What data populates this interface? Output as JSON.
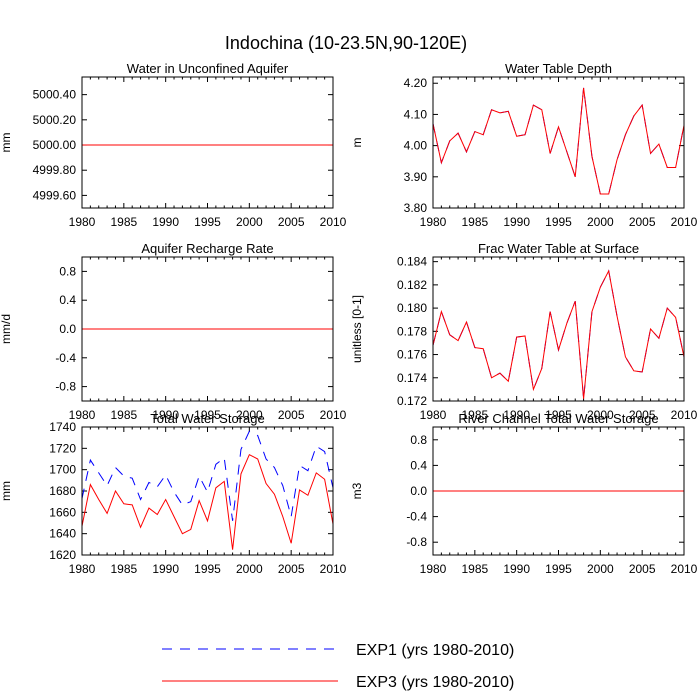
{
  "figure_title": "Indochina (10-23.5N,90-120E)",
  "legend": [
    {
      "label": "EXP1 (yrs 1980-2010)",
      "color": "#0000ff",
      "dash": "dashed"
    },
    {
      "label": "EXP3 (yrs 1980-2010)",
      "color": "#ff0000",
      "dash": "solid"
    }
  ],
  "chart_data": [
    {
      "type": "line",
      "title": "Water in Unconfined Aquifer",
      "ylabel": "mm",
      "xlabel": "",
      "xlim": [
        1980,
        2010
      ],
      "ylim": [
        4999.5,
        5000.54
      ],
      "xticks": [
        1980,
        1985,
        1990,
        1995,
        2000,
        2005,
        2010
      ],
      "xtick_labels": [
        "1980",
        "1985",
        "1990",
        "1995",
        "2000",
        "2005",
        "2010"
      ],
      "yticks": [
        4999.6,
        4999.8,
        5000.0,
        5000.2,
        5000.4
      ],
      "ytick_labels": [
        "4999.60",
        "4999.80",
        "5000.00",
        "5000.20",
        "5000.40"
      ],
      "x": [
        1980,
        1981,
        1982,
        1983,
        1984,
        1985,
        1986,
        1987,
        1988,
        1989,
        1990,
        1991,
        1992,
        1993,
        1994,
        1995,
        1996,
        1997,
        1998,
        1999,
        2000,
        2001,
        2002,
        2003,
        2004,
        2005,
        2006,
        2007,
        2008,
        2009,
        2010
      ],
      "series": [
        {
          "name": "EXP1 (yrs 1980-2010)",
          "values": [
            5000,
            5000,
            5000,
            5000,
            5000,
            5000,
            5000,
            5000,
            5000,
            5000,
            5000,
            5000,
            5000,
            5000,
            5000,
            5000,
            5000,
            5000,
            5000,
            5000,
            5000,
            5000,
            5000,
            5000,
            5000,
            5000,
            5000,
            5000,
            5000,
            5000,
            5000
          ]
        },
        {
          "name": "EXP3 (yrs 1980-2010)",
          "values": [
            5000,
            5000,
            5000,
            5000,
            5000,
            5000,
            5000,
            5000,
            5000,
            5000,
            5000,
            5000,
            5000,
            5000,
            5000,
            5000,
            5000,
            5000,
            5000,
            5000,
            5000,
            5000,
            5000,
            5000,
            5000,
            5000,
            5000,
            5000,
            5000,
            5000,
            5000
          ]
        }
      ]
    },
    {
      "type": "line",
      "title": "Water Table Depth",
      "ylabel": "m",
      "xlabel": "",
      "xlim": [
        1980,
        2010
      ],
      "ylim": [
        3.8,
        4.22
      ],
      "xticks": [
        1980,
        1985,
        1990,
        1995,
        2000,
        2005,
        2010
      ],
      "xtick_labels": [
        "1980",
        "1985",
        "1990",
        "1995",
        "2000",
        "2005",
        "2010"
      ],
      "yticks": [
        3.8,
        3.9,
        4.0,
        4.1,
        4.2
      ],
      "ytick_labels": [
        "3.80",
        "3.90",
        "4.00",
        "4.10",
        "4.20"
      ],
      "x": [
        1980,
        1981,
        1982,
        1983,
        1984,
        1985,
        1986,
        1987,
        1988,
        1989,
        1990,
        1991,
        1992,
        1993,
        1994,
        1995,
        1996,
        1997,
        1998,
        1999,
        2000,
        2001,
        2002,
        2003,
        2004,
        2005,
        2006,
        2007,
        2008,
        2009,
        2010
      ],
      "series": [
        {
          "name": "EXP1 (yrs 1980-2010)",
          "values": [
            4.07,
            3.945,
            4.015,
            4.04,
            3.98,
            4.045,
            4.035,
            4.115,
            4.105,
            4.11,
            4.03,
            4.035,
            4.13,
            4.115,
            3.975,
            4.06,
            3.98,
            3.9,
            4.185,
            3.965,
            3.845,
            3.845,
            3.955,
            4.035,
            4.095,
            4.13,
            3.975,
            4.005,
            3.93,
            3.93,
            4.065
          ]
        },
        {
          "name": "EXP3 (yrs 1980-2010)",
          "values": [
            4.07,
            3.945,
            4.015,
            4.04,
            3.98,
            4.045,
            4.035,
            4.115,
            4.105,
            4.11,
            4.03,
            4.035,
            4.13,
            4.115,
            3.975,
            4.06,
            3.98,
            3.9,
            4.185,
            3.965,
            3.845,
            3.845,
            3.955,
            4.035,
            4.095,
            4.13,
            3.975,
            4.005,
            3.93,
            3.93,
            4.065
          ]
        }
      ]
    },
    {
      "type": "line",
      "title": "Aquifer Recharge Rate",
      "ylabel": "mm/d",
      "xlabel": "",
      "xlim": [
        1980,
        2010
      ],
      "ylim": [
        -1.0,
        1.0
      ],
      "xticks": [
        1980,
        1985,
        1990,
        1995,
        2000,
        2005,
        2010
      ],
      "xtick_labels": [
        "1980",
        "1985",
        "1990",
        "1995",
        "2000",
        "2005",
        "2010"
      ],
      "yticks": [
        -0.8,
        -0.4,
        0.0,
        0.4,
        0.8
      ],
      "ytick_labels": [
        "-0.8",
        "-0.4",
        "0.0",
        "0.4",
        "0.8"
      ],
      "x": [
        1980,
        1981,
        1982,
        1983,
        1984,
        1985,
        1986,
        1987,
        1988,
        1989,
        1990,
        1991,
        1992,
        1993,
        1994,
        1995,
        1996,
        1997,
        1998,
        1999,
        2000,
        2001,
        2002,
        2003,
        2004,
        2005,
        2006,
        2007,
        2008,
        2009,
        2010
      ],
      "series": [
        {
          "name": "EXP1 (yrs 1980-2010)",
          "values": [
            0,
            0,
            0,
            0,
            0,
            0,
            0,
            0,
            0,
            0,
            0,
            0,
            0,
            0,
            0,
            0,
            0,
            0,
            0,
            0,
            0,
            0,
            0,
            0,
            0,
            0,
            0,
            0,
            0,
            0,
            0
          ]
        },
        {
          "name": "EXP3 (yrs 1980-2010)",
          "values": [
            0,
            0,
            0,
            0,
            0,
            0,
            0,
            0,
            0,
            0,
            0,
            0,
            0,
            0,
            0,
            0,
            0,
            0,
            0,
            0,
            0,
            0,
            0,
            0,
            0,
            0,
            0,
            0,
            0,
            0,
            0
          ]
        }
      ]
    },
    {
      "type": "line",
      "title": "Frac Water Table at Surface",
      "ylabel": "unitless [0-1]",
      "xlabel": "",
      "xlim": [
        1980,
        2010
      ],
      "ylim": [
        0.172,
        0.1844
      ],
      "xticks": [
        1980,
        1985,
        1990,
        1995,
        2000,
        2005,
        2010
      ],
      "xtick_labels": [
        "1980",
        "1985",
        "1990",
        "1995",
        "2000",
        "2005",
        "2010"
      ],
      "yticks": [
        0.172,
        0.174,
        0.176,
        0.178,
        0.18,
        0.182,
        0.184
      ],
      "ytick_labels": [
        "0.172",
        "0.174",
        "0.176",
        "0.178",
        "0.180",
        "0.182",
        "0.184"
      ],
      "x": [
        1980,
        1981,
        1982,
        1983,
        1984,
        1985,
        1986,
        1987,
        1988,
        1989,
        1990,
        1991,
        1992,
        1993,
        1994,
        1995,
        1996,
        1997,
        1998,
        1999,
        2000,
        2001,
        2002,
        2003,
        2004,
        2005,
        2006,
        2007,
        2008,
        2009,
        2010
      ],
      "series": [
        {
          "name": "EXP1 (yrs 1980-2010)",
          "values": [
            0.1768,
            0.1797,
            0.1777,
            0.1772,
            0.1788,
            0.1766,
            0.1765,
            0.174,
            0.1744,
            0.1737,
            0.1775,
            0.1776,
            0.173,
            0.1748,
            0.1797,
            0.1764,
            0.1787,
            0.1806,
            0.1722,
            0.1797,
            0.1818,
            0.1832,
            0.1793,
            0.1758,
            0.1746,
            0.1745,
            0.1782,
            0.1774,
            0.18,
            0.1792,
            0.1758
          ]
        },
        {
          "name": "EXP3 (yrs 1980-2010)",
          "values": [
            0.1768,
            0.1797,
            0.1777,
            0.1772,
            0.1788,
            0.1766,
            0.1765,
            0.174,
            0.1744,
            0.1737,
            0.1775,
            0.1776,
            0.173,
            0.1748,
            0.1797,
            0.1764,
            0.1787,
            0.1806,
            0.1722,
            0.1797,
            0.1818,
            0.1832,
            0.1793,
            0.1758,
            0.1746,
            0.1745,
            0.1782,
            0.1774,
            0.18,
            0.1792,
            0.1758
          ]
        }
      ]
    },
    {
      "type": "line",
      "title": "Total Water Storage",
      "ylabel": "mm",
      "xlabel": "",
      "xlim": [
        1980,
        2010
      ],
      "ylim": [
        1620,
        1740
      ],
      "xticks": [
        1980,
        1985,
        1990,
        1995,
        2000,
        2005,
        2010
      ],
      "xtick_labels": [
        "1980",
        "1985",
        "1990",
        "1995",
        "2000",
        "2005",
        "2010"
      ],
      "yticks": [
        1620,
        1640,
        1660,
        1680,
        1700,
        1720,
        1740
      ],
      "ytick_labels": [
        "1620",
        "1640",
        "1660",
        "1680",
        "1700",
        "1720",
        "1740"
      ],
      "x": [
        1980,
        1981,
        1982,
        1983,
        1984,
        1985,
        1986,
        1987,
        1988,
        1989,
        1990,
        1991,
        1992,
        1993,
        1994,
        1995,
        1996,
        1997,
        1998,
        1999,
        2000,
        2001,
        2002,
        2003,
        2004,
        2005,
        2006,
        2007,
        2008,
        2009,
        2010
      ],
      "series": [
        {
          "name": "EXP1 (yrs 1980-2010)",
          "values": [
            1673,
            1709,
            1697,
            1685,
            1702,
            1694,
            1692,
            1672,
            1688,
            1684,
            1695,
            1679,
            1667,
            1670,
            1694,
            1679,
            1705,
            1711,
            1652,
            1719,
            1736,
            1732,
            1710,
            1702,
            1685,
            1656,
            1704,
            1699,
            1722,
            1717,
            1683
          ]
        },
        {
          "name": "EXP3 (yrs 1980-2010)",
          "values": [
            1647,
            1686,
            1672,
            1659,
            1680,
            1668,
            1667,
            1646,
            1664,
            1658,
            1672,
            1656,
            1640,
            1644,
            1671,
            1652,
            1683,
            1689,
            1625,
            1696,
            1714,
            1710,
            1687,
            1677,
            1656,
            1631,
            1681,
            1676,
            1697,
            1691,
            1649
          ]
        }
      ]
    },
    {
      "type": "line",
      "title": "River Channel Total Water Storage",
      "ylabel": "m3",
      "xlabel": "",
      "xlim": [
        1980,
        2010
      ],
      "ylim": [
        -1.0,
        1.0
      ],
      "xticks": [
        1980,
        1985,
        1990,
        1995,
        2000,
        2005,
        2010
      ],
      "xtick_labels": [
        "1980",
        "1985",
        "1990",
        "1995",
        "2000",
        "2005",
        "2010"
      ],
      "yticks": [
        -0.8,
        -0.4,
        0.0,
        0.4,
        0.8
      ],
      "ytick_labels": [
        "-0.8",
        "-0.4",
        "0.0",
        "0.4",
        "0.8"
      ],
      "x": [
        1980,
        1981,
        1982,
        1983,
        1984,
        1985,
        1986,
        1987,
        1988,
        1989,
        1990,
        1991,
        1992,
        1993,
        1994,
        1995,
        1996,
        1997,
        1998,
        1999,
        2000,
        2001,
        2002,
        2003,
        2004,
        2005,
        2006,
        2007,
        2008,
        2009,
        2010
      ],
      "series": [
        {
          "name": "EXP1 (yrs 1980-2010)",
          "values": [
            0,
            0,
            0,
            0,
            0,
            0,
            0,
            0,
            0,
            0,
            0,
            0,
            0,
            0,
            0,
            0,
            0,
            0,
            0,
            0,
            0,
            0,
            0,
            0,
            0,
            0,
            0,
            0,
            0,
            0,
            0
          ]
        },
        {
          "name": "EXP3 (yrs 1980-2010)",
          "values": [
            0,
            0,
            0,
            0,
            0,
            0,
            0,
            0,
            0,
            0,
            0,
            0,
            0,
            0,
            0,
            0,
            0,
            0,
            0,
            0,
            0,
            0,
            0,
            0,
            0,
            0,
            0,
            0,
            0,
            0,
            0
          ]
        }
      ]
    }
  ]
}
